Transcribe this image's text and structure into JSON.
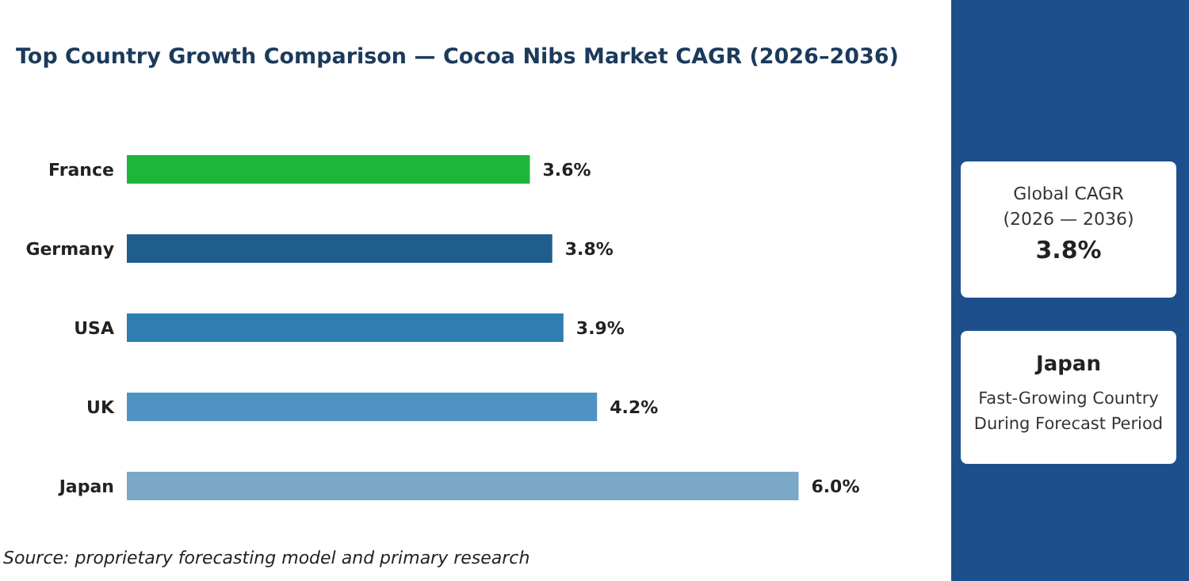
{
  "chart_data": {
    "type": "bar",
    "orientation": "horizontal",
    "title": "Top Country Growth Comparison — Cocoa Nibs Market CAGR (2026–2036)",
    "categories": [
      "France",
      "Germany",
      "USA",
      "UK",
      "Japan"
    ],
    "values": [
      3.6,
      3.8,
      3.9,
      4.2,
      6.0
    ],
    "colors": [
      "#1fb53b",
      "#1f5d8c",
      "#2f7db3",
      "#4f93c4",
      "#7aa8c6"
    ],
    "value_labels": [
      "3.6%",
      "3.8%",
      "3.9%",
      "4.2%",
      "6.0%"
    ],
    "grid": false,
    "annotations": [
      "Source: proprietary forecasting model and primary research",
      "Global CAGR",
      "(2026 — 2036)",
      "3.8%",
      "Japan",
      "Fast-Growing Country",
      "During Forecast Period"
    ]
  }
}
